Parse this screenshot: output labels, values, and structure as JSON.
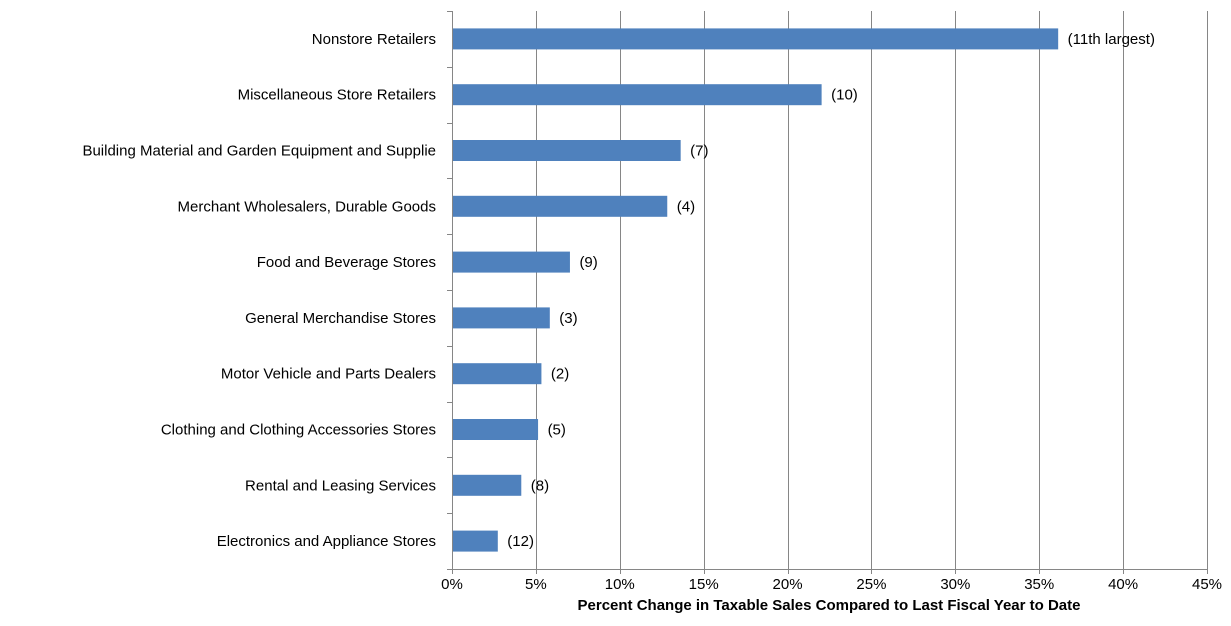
{
  "chart_data": {
    "type": "bar",
    "orientation": "horizontal",
    "categories": [
      "Nonstore Retailers",
      "Miscellaneous Store Retailers",
      "Building Material and Garden Equipment and Supplie",
      "Merchant Wholesalers, Durable Goods",
      "Food and Beverage Stores",
      "General Merchandise Stores",
      "Motor Vehicle and Parts Dealers",
      "Clothing and Clothing Accessories Stores",
      "Rental and Leasing Services",
      "Electronics and Appliance Stores"
    ],
    "values": [
      36.1,
      22.0,
      13.6,
      12.8,
      7.0,
      5.8,
      5.3,
      5.1,
      4.1,
      2.7
    ],
    "data_labels": [
      "(11th largest)",
      "(10)",
      "(7)",
      "(4)",
      "(9)",
      "(3)",
      "(2)",
      "(5)",
      "(8)",
      "(12)"
    ],
    "xlabel": "Percent Change in Taxable Sales Compared to Last Fiscal Year to Date",
    "xlim": [
      0,
      45
    ],
    "xticks": [
      0,
      5,
      10,
      15,
      20,
      25,
      30,
      35,
      40,
      45
    ],
    "xtick_labels": [
      "0%",
      "5%",
      "10%",
      "15%",
      "20%",
      "25%",
      "30%",
      "35%",
      "40%",
      "45%"
    ],
    "grid": "vertical",
    "legend": "none",
    "bar_color": "#4F81BD",
    "grid_color": "#868686"
  }
}
